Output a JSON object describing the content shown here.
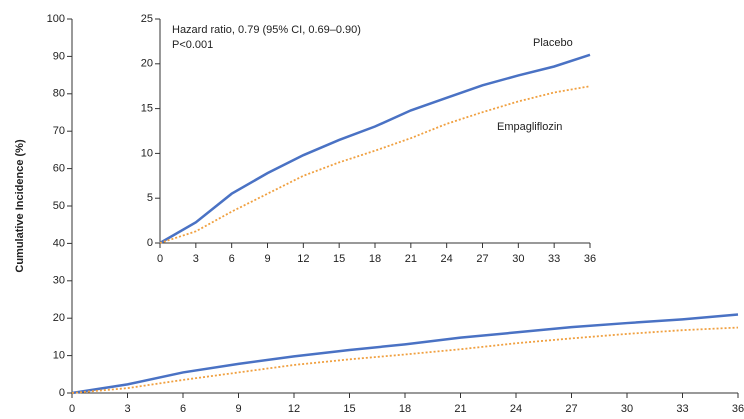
{
  "chart_data": [
    {
      "type": "line",
      "y_label": "Cumulative Incidence (%)",
      "x": [
        0,
        3,
        6,
        9,
        12,
        15,
        18,
        21,
        24,
        27,
        30,
        33,
        36
      ],
      "xlim": [
        0,
        36
      ],
      "xticks": [
        0,
        3,
        6,
        9,
        12,
        15,
        18,
        21,
        24,
        27,
        30,
        33,
        36
      ],
      "ylim": [
        0,
        100
      ],
      "yticks": [
        0,
        10,
        20,
        30,
        40,
        50,
        60,
        70,
        80,
        90,
        100
      ],
      "series": [
        {
          "color": "#4a72c4",
          "values": [
            0,
            2.3,
            5.5,
            7.8,
            9.8,
            11.5,
            13,
            14.8,
            16.2,
            17.6,
            18.7,
            19.7,
            21
          ]
        },
        {
          "color": "#f0a040",
          "values": [
            0,
            1.3,
            3.5,
            5.5,
            7.5,
            9,
            10.3,
            11.7,
            13.3,
            14.6,
            15.8,
            16.8,
            17.5
          ]
        }
      ]
    },
    {
      "type": "line",
      "annotations": [
        "Hazard ratio, 0.79 (95% CI, 0.69–0.90)",
        "P<0.001"
      ],
      "x": [
        0,
        3,
        6,
        9,
        12,
        15,
        18,
        21,
        24,
        27,
        30,
        33,
        36
      ],
      "xlim": [
        0,
        36
      ],
      "xticks": [
        0,
        3,
        6,
        9,
        12,
        15,
        18,
        21,
        24,
        27,
        30,
        33,
        36
      ],
      "ylim": [
        0,
        25
      ],
      "yticks": [
        0,
        5,
        10,
        15,
        20,
        25
      ],
      "series": [
        {
          "name": "Placebo",
          "color": "#4a72c4",
          "values": [
            0,
            2.3,
            5.5,
            7.8,
            9.8,
            11.5,
            13,
            14.8,
            16.2,
            17.6,
            18.7,
            19.7,
            21
          ]
        },
        {
          "name": "Empagliflozin",
          "color": "#f0a040",
          "values": [
            0,
            1.3,
            3.5,
            5.5,
            7.5,
            9,
            10.3,
            11.7,
            13.3,
            14.6,
            15.8,
            16.8,
            17.5
          ]
        }
      ]
    }
  ]
}
